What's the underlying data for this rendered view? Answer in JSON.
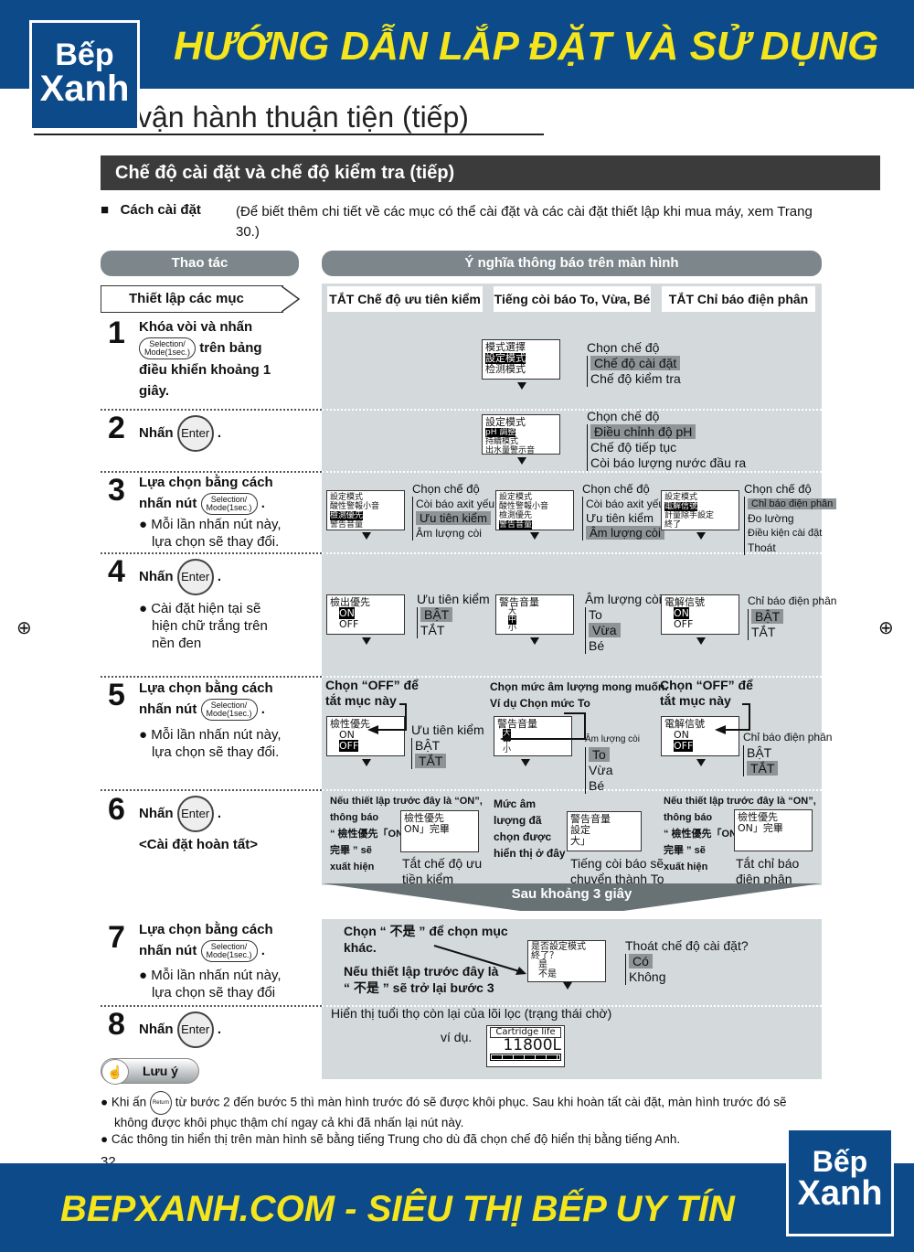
{
  "header": {
    "title": "HƯỚNG DẪN LẮP ĐẶT VÀ SỬ DỤNG",
    "logo_top": "Bếp",
    "logo_bottom": "Xanh"
  },
  "subtitle": "vận hành thuận tiện (tiếp)",
  "section_title": "Chế độ cài đặt và chế độ kiểm tra (tiếp)",
  "how_to": {
    "label": "Cách cài đặt",
    "note": "(Để biết thêm chi tiết về các mục có thể cài đặt và các cài đặt thiết lập khi mua máy, xem Trang 30.)"
  },
  "columns": {
    "left": "Thao tác",
    "right": "Ý nghĩa thông báo trên màn hình"
  },
  "setup_label": "Thiết lập các mục",
  "tabs": [
    "TẮT Chế độ ưu tiên kiểm",
    "Tiếng còi báo To, Vừa, Bé",
    "TẮT Chỉ báo điện phân"
  ],
  "buttons": {
    "selection_l1": "Selection/",
    "selection_l2": "Mode(1sec.)",
    "enter": "Enter",
    "return": "Return"
  },
  "steps": [
    {
      "n": "1",
      "l1": "Khóa vòi và nhấn",
      "l2": "trên bảng",
      "l3": "điều khiển khoảng 1",
      "l4": "giây."
    },
    {
      "n": "2",
      "l1": "Nhấn"
    },
    {
      "n": "3",
      "l1": "Lựa chọn bằng cách",
      "l2": "nhấn nút",
      "note1": "● Mỗi lần nhấn nút này,",
      "note2": "lựa chọn sẽ thay đổi."
    },
    {
      "n": "4",
      "l1": "Nhấn",
      "note1": "● Cài đặt hiện tại sẽ",
      "note2": "hiện chữ trắng trên",
      "note3": "nền đen"
    },
    {
      "n": "5",
      "l1": "Lựa chọn bằng cách",
      "l2": "nhấn nút",
      "note1": "● Mỗi lần nhấn nút này,",
      "note2": "lựa chọn sẽ thay đổi."
    },
    {
      "n": "6",
      "l1": "Nhấn",
      "l2": "<Cài đặt hoàn tất>"
    },
    {
      "n": "7",
      "l1": "Lựa chọn bằng cách",
      "l2": "nhấn nút",
      "note1": "● Mỗi lần nhấn nút này,",
      "note2": "lựa chọn sẽ thay đổi"
    },
    {
      "n": "8",
      "l1": "Nhấn"
    }
  ],
  "screens": {
    "r1": {
      "lcd": [
        "模式選擇",
        "設定模式",
        "检测模式"
      ],
      "title": "Chọn chế độ",
      "items": [
        "Chế độ cài đặt",
        "Chế độ kiểm tra"
      ]
    },
    "r2": {
      "lcd": [
        "設定模式",
        "pH 調整",
        "持續模式",
        "出水量警示音"
      ],
      "title": "Chọn chế độ",
      "items": [
        "Điều chỉnh độ pH",
        "Chế độ tiếp tục",
        "Còi báo lượng nước đầu ra"
      ]
    },
    "r3a": {
      "lcd": [
        "設定模式",
        "酸性警報小音",
        "檢測優先",
        "警告音量"
      ],
      "title": "Chọn chế độ",
      "items": [
        "Còi báo axit yếu",
        "Ưu tiên kiểm",
        "Âm lượng còi"
      ]
    },
    "r3b": {
      "lcd": [
        "設定模式",
        "酸性警報小音",
        "檢測優先",
        "警告音量"
      ],
      "title": "Chọn chế度",
      "items": [
        "Còi báo axit yếu",
        "Ưu tiên kiểm",
        "Âm lượng còi"
      ]
    },
    "r3c": {
      "lcd": [
        "設定模式",
        "電解信號",
        "計量除手設定",
        "終了"
      ],
      "title": "Chọn chế độ",
      "items": [
        "Chỉ báo điện phân",
        "Đo lường",
        "Điều kiện cài đặt",
        "Thoát"
      ]
    },
    "r4a": {
      "lcd": [
        "檢出優先",
        "ON",
        "OFF"
      ],
      "title": "Ưu tiên kiểm",
      "items": [
        "BẬT",
        "TẮT"
      ]
    },
    "r4b": {
      "lcd": [
        "警告音量",
        "大",
        "中",
        "小"
      ],
      "title": "Âm lượng còi",
      "items": [
        "To",
        "Vừa",
        "Bé"
      ]
    },
    "r4c": {
      "lcd": [
        "電解信號",
        "ON",
        "OFF"
      ],
      "title": "Chỉ báo điện phân",
      "items": [
        "BẬT",
        "TẮT"
      ]
    },
    "r5a": {
      "caption1": "Chọn “OFF” để",
      "caption2": "tắt mục này",
      "lcd": [
        "檢性優先",
        "ON",
        "OFF"
      ],
      "title": "Ưu tiên kiểm",
      "items": [
        "BẬT",
        "TẮT"
      ]
    },
    "r5b": {
      "caption1": "Chọn mức âm lượng mong muốn.",
      "caption2": "Ví dụ Chọn mức To",
      "lcd": [
        "警告音量",
        "大",
        "中",
        "小"
      ],
      "title": "Âm lượng còi",
      "items": [
        "To",
        "Vừa",
        "Bé"
      ]
    },
    "r5c": {
      "caption1": "Chọn “OFF” để",
      "caption2": "tắt mục này",
      "lcd": [
        "電解信號",
        "ON",
        "OFF"
      ],
      "title": "Chỉ báo điện phân",
      "items": [
        "BẬT",
        "TẮT"
      ]
    },
    "r6a": {
      "note": [
        "Nếu thiết lập trước đây là “ON”,",
        "thông báo",
        "“ 檢性優先「ON」",
        "完畢 ” sẽ",
        "xuất hiện"
      ],
      "lcd": [
        "檢性優先",
        "ON」完畢"
      ],
      "result": [
        "Tắt chế độ ưu",
        "tiền kiểm"
      ]
    },
    "r6b": {
      "note": [
        "Mức âm",
        "lượng đã",
        "chọn được",
        "hiển thị ở đây"
      ],
      "lcd": [
        "警告音量",
        "設定",
        "大」"
      ],
      "result": [
        "Tiếng còi báo sẽ",
        "chuyển thành To"
      ]
    },
    "r6c": {
      "note": [
        "Nếu thiết lập trước đây là “ON”,",
        "thông báo",
        "“ 檢性優先「ON」",
        "完畢 ” sẽ",
        "xuất hiện"
      ],
      "lcd": [
        "檢性優先",
        "ON」完畢"
      ],
      "result": [
        "Tắt chỉ báo",
        "điện phân"
      ]
    },
    "after": "Sau khoảng 3 giây",
    "r7": {
      "note1": "Chọn “ 不是 ” để chọn mục",
      "note2": "khác.",
      "note3": "Nếu thiết lập trước đây là",
      "note4": "“ 不是 ” sẽ trở lại bước 3",
      "lcd": [
        "是否設定模式",
        "終了？",
        "是",
        "不是"
      ],
      "title": "Thoát chế độ cài đặt?",
      "items": [
        "Có",
        "Không"
      ]
    },
    "r8": {
      "title": "Hiển thị tuổi thọ còn lại của lõi lọc (trạng thái chờ)",
      "example": "ví dụ.",
      "lcd_label": "Cartridge life",
      "lcd_value": "11800L",
      "life_level": 1.0
    }
  },
  "notes": {
    "label": "Lưu ý",
    "n1a": "● Khi ấn",
    "n1b": "từ bước 2 đến bước 5 thì màn hình trước đó sẽ được khôi phục. Sau khi hoàn tất cài đặt, màn hình trước đó sẽ",
    "n1c": "không được khôi phục thậm chí ngay cả khi đã nhấn lại nút này.",
    "n2": "● Các thông tin hiển thị trên màn hình sẽ bằng tiếng Trung cho dù đã chọn chế độ hiển thị bằng tiếng Anh."
  },
  "page_number": "32",
  "footer": {
    "text": "BEPXANH.COM - SIÊU THỊ BẾP UY TÍN",
    "logo_top": "Bếp",
    "logo_bottom": "Xanh"
  },
  "colors": {
    "brand_blue": "#0c4a8a",
    "brand_yellow": "#f4e51c",
    "panel": "#d4d9db",
    "highlight": "#8e9496"
  }
}
